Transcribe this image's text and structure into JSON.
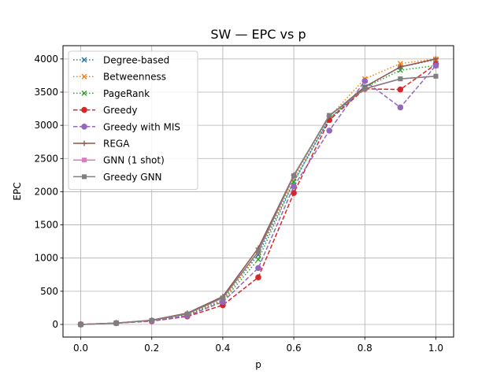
{
  "chart_data": {
    "type": "line",
    "title": "SW — EPC vs p",
    "xlabel": "p",
    "ylabel": "EPC",
    "xlim": [
      -0.05,
      1.05
    ],
    "ylim": [
      -190,
      4200
    ],
    "xticks": [
      0.0,
      0.2,
      0.4,
      0.6,
      0.8,
      1.0
    ],
    "xtick_labels": [
      "0.0",
      "0.2",
      "0.4",
      "0.6",
      "0.8",
      "1.0"
    ],
    "yticks": [
      0,
      500,
      1000,
      1500,
      2000,
      2500,
      3000,
      3500,
      4000
    ],
    "ytick_labels": [
      "0",
      "500",
      "1000",
      "1500",
      "2000",
      "2500",
      "3000",
      "3500",
      "4000"
    ],
    "grid": true,
    "legend_position": "top-left",
    "x": [
      0.0,
      0.1,
      0.2,
      0.3,
      0.4,
      0.5,
      0.6,
      0.7,
      0.8,
      0.9,
      1.0
    ],
    "series": [
      {
        "name": "Degree-based",
        "color": "#1f77b4",
        "dash": "dotted",
        "marker": "x",
        "values": [
          0,
          20,
          55,
          150,
          370,
          1050,
          2150,
          3100,
          3580,
          3880,
          3990
        ]
      },
      {
        "name": "Betweenness",
        "color": "#ff7f0e",
        "dash": "dotted",
        "marker": "x",
        "values": [
          0,
          20,
          55,
          150,
          360,
          1080,
          2200,
          3130,
          3700,
          3930,
          4000
        ]
      },
      {
        "name": "PageRank",
        "color": "#2ca02c",
        "dash": "dotted",
        "marker": "x",
        "values": [
          0,
          20,
          55,
          140,
          350,
          980,
          2150,
          3100,
          3570,
          3830,
          3900
        ]
      },
      {
        "name": "Greedy",
        "color": "#d62728",
        "dash": "dashed",
        "marker": "circle",
        "values": [
          0,
          20,
          50,
          120,
          290,
          710,
          1980,
          3080,
          3550,
          3540,
          3920
        ]
      },
      {
        "name": "Greedy with MIS",
        "color": "#9467bd",
        "dash": "dashed",
        "marker": "circle",
        "values": [
          0,
          20,
          55,
          130,
          340,
          850,
          2080,
          2920,
          3670,
          3270,
          3900
        ]
      },
      {
        "name": "REGA",
        "color": "#8c564b",
        "dash": "solid",
        "marker": "plus",
        "values": [
          0,
          20,
          65,
          170,
          420,
          1150,
          2250,
          3140,
          3580,
          3880,
          4000
        ]
      },
      {
        "name": "GNN (1 shot)",
        "color": "#e377c2",
        "dash": "solid",
        "marker": "square",
        "values": [
          0,
          20,
          60,
          160,
          400,
          1100,
          2240,
          3150,
          3550,
          3700,
          3740
        ]
      },
      {
        "name": "Greedy GNN",
        "color": "#7f7f7f",
        "dash": "solid",
        "marker": "square",
        "values": [
          0,
          20,
          60,
          160,
          400,
          1100,
          2240,
          3150,
          3550,
          3700,
          3740
        ]
      }
    ]
  }
}
